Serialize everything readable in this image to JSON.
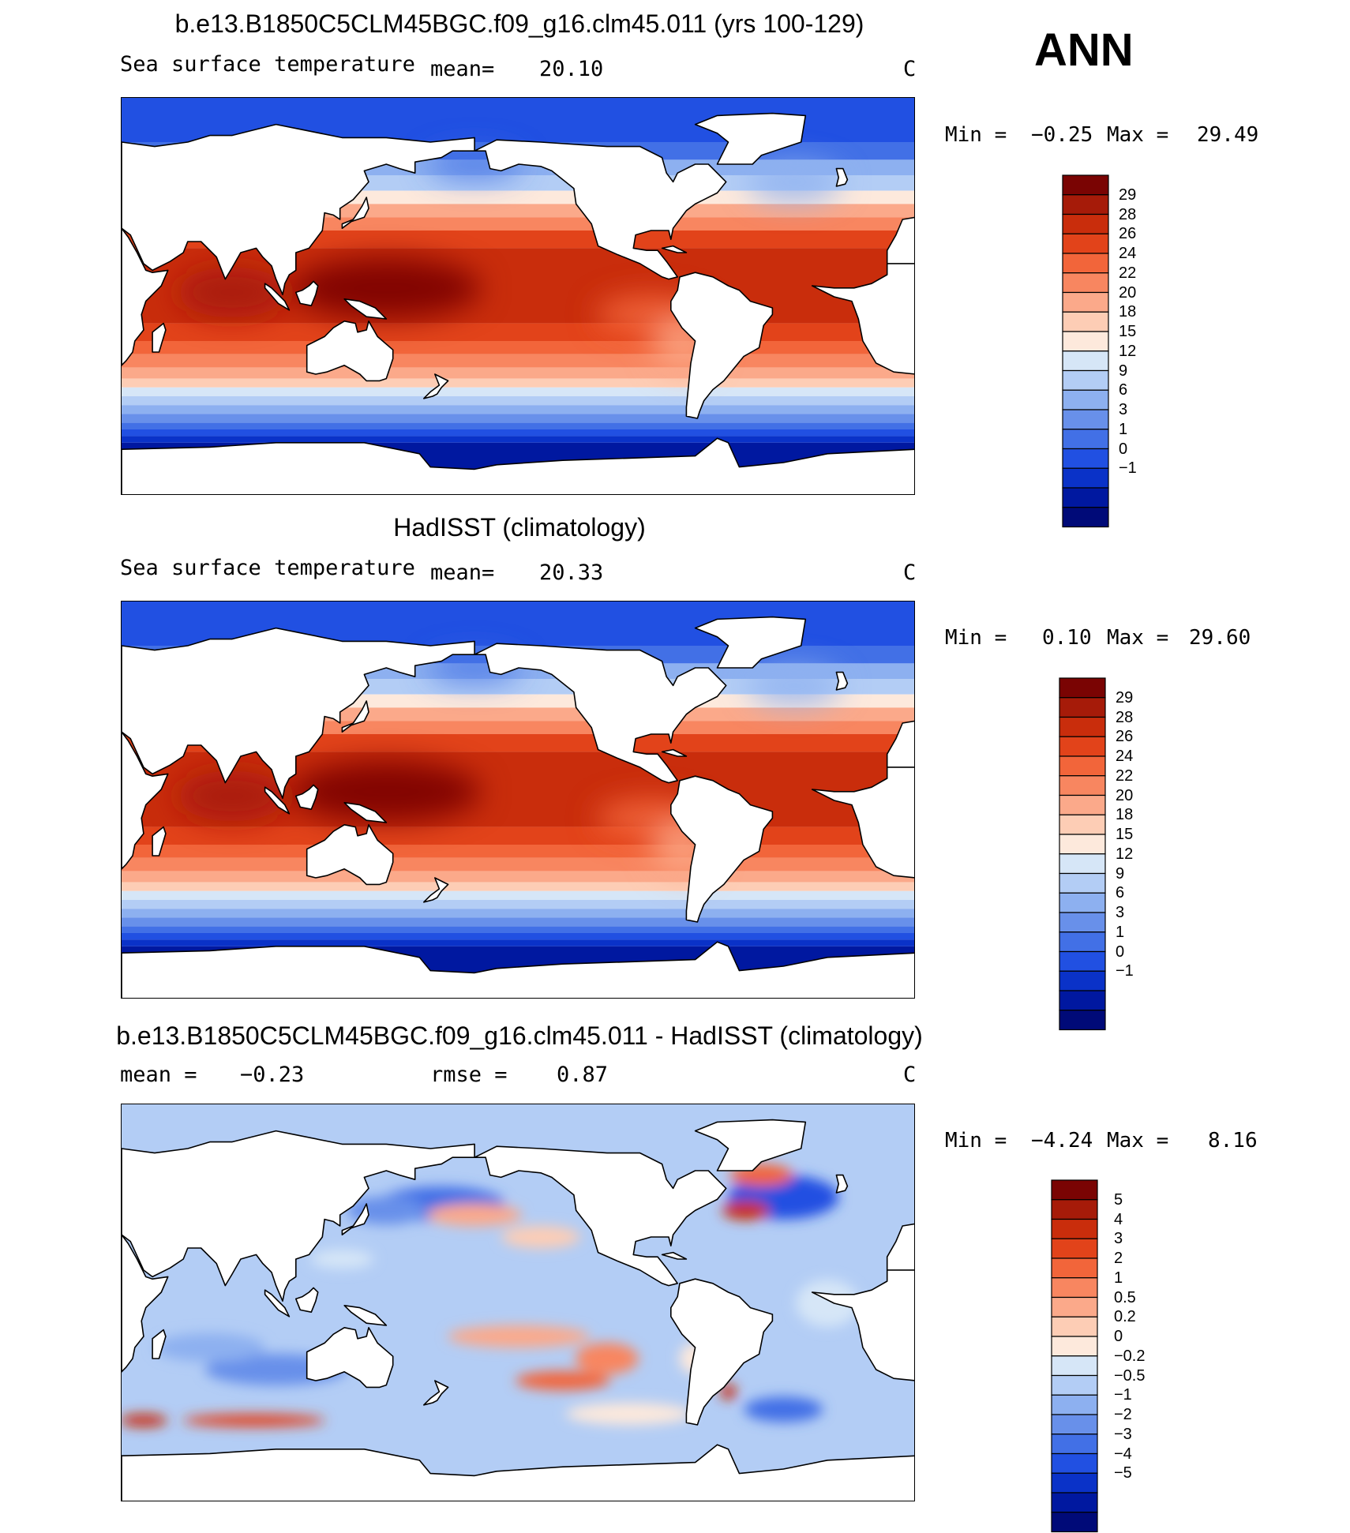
{
  "season": "ANN",
  "panels": [
    {
      "title": "b.e13.B1850C5CLM45BGC.f09_g16.clm45.011 (yrs 100-129)",
      "variable": "Sea surface temperature",
      "mean_label": "mean=",
      "mean": "20.10",
      "units": "C",
      "min_label": "Min =",
      "min": "−0.25",
      "max_label": "Max =",
      "max": "29.49"
    },
    {
      "title": "HadISST (climatology)",
      "variable": "Sea surface temperature",
      "mean_label": "mean=",
      "mean": "20.33",
      "units": "C",
      "min_label": "Min =",
      "min": "0.10",
      "max_label": "Max =",
      "max": "29.60"
    },
    {
      "title": "b.e13.B1850C5CLM45BGC.f09_g16.clm45.011 - HadISST (climatology)",
      "mean_label": "mean =",
      "mean": "−0.23",
      "rmse_label": "rmse =",
      "rmse": "0.87",
      "units": "C",
      "min_label": "Min =",
      "min": "−4.24",
      "max_label": "Max =",
      "max": "8.16"
    }
  ],
  "chart_data": [
    {
      "type": "heatmap",
      "title": "b.e13.B1850C5CLM45BGC.f09_g16.clm45.011 (yrs 100-129)",
      "variable": "Sea surface temperature",
      "units": "C",
      "mean": 20.1,
      "min": -0.25,
      "max": 29.49,
      "colorbar_levels": [
        "29",
        "28",
        "26",
        "24",
        "22",
        "20",
        "18",
        "15",
        "12",
        "9",
        "6",
        "3",
        "1",
        "0",
        "−1"
      ],
      "colorbar_colors": [
        "#7a0403",
        "#a61b09",
        "#c92d0c",
        "#e2431a",
        "#f2653a",
        "#f88660",
        "#fba98a",
        "#fdcdb5",
        "#fde9dc",
        "#d6e6f7",
        "#b3cdf5",
        "#8db0f0",
        "#6890ea",
        "#4270e6",
        "#2150e2",
        "#0a32c8",
        "#0018a0",
        "#000a78"
      ]
    },
    {
      "type": "heatmap",
      "title": "HadISST (climatology)",
      "variable": "Sea surface temperature",
      "units": "C",
      "mean": 20.33,
      "min": 0.1,
      "max": 29.6,
      "colorbar_levels": [
        "29",
        "28",
        "26",
        "24",
        "22",
        "20",
        "18",
        "15",
        "12",
        "9",
        "6",
        "3",
        "1",
        "0",
        "−1"
      ],
      "colorbar_colors": [
        "#7a0403",
        "#a61b09",
        "#c92d0c",
        "#e2431a",
        "#f2653a",
        "#f88660",
        "#fba98a",
        "#fdcdb5",
        "#fde9dc",
        "#d6e6f7",
        "#b3cdf5",
        "#8db0f0",
        "#6890ea",
        "#4270e6",
        "#2150e2",
        "#0a32c8",
        "#0018a0",
        "#000a78"
      ]
    },
    {
      "type": "heatmap",
      "title": "b.e13.B1850C5CLM45BGC.f09_g16.clm45.011 - HadISST (climatology)",
      "units": "C",
      "mean": -0.23,
      "rmse": 0.87,
      "min": -4.24,
      "max": 8.16,
      "colorbar_levels": [
        "5",
        "4",
        "3",
        "2",
        "1",
        "0.5",
        "0.2",
        "0",
        "−0.2",
        "−0.5",
        "−1",
        "−2",
        "−3",
        "−4",
        "−5"
      ],
      "colorbar_colors": [
        "#7a0403",
        "#a61b09",
        "#c92d0c",
        "#e2431a",
        "#f2653a",
        "#f88660",
        "#fba98a",
        "#fdcdb5",
        "#fde9dc",
        "#d6e6f7",
        "#b3cdf5",
        "#8db0f0",
        "#6890ea",
        "#4270e6",
        "#2150e2",
        "#0a32c8",
        "#0018a0",
        "#000a78"
      ]
    }
  ]
}
